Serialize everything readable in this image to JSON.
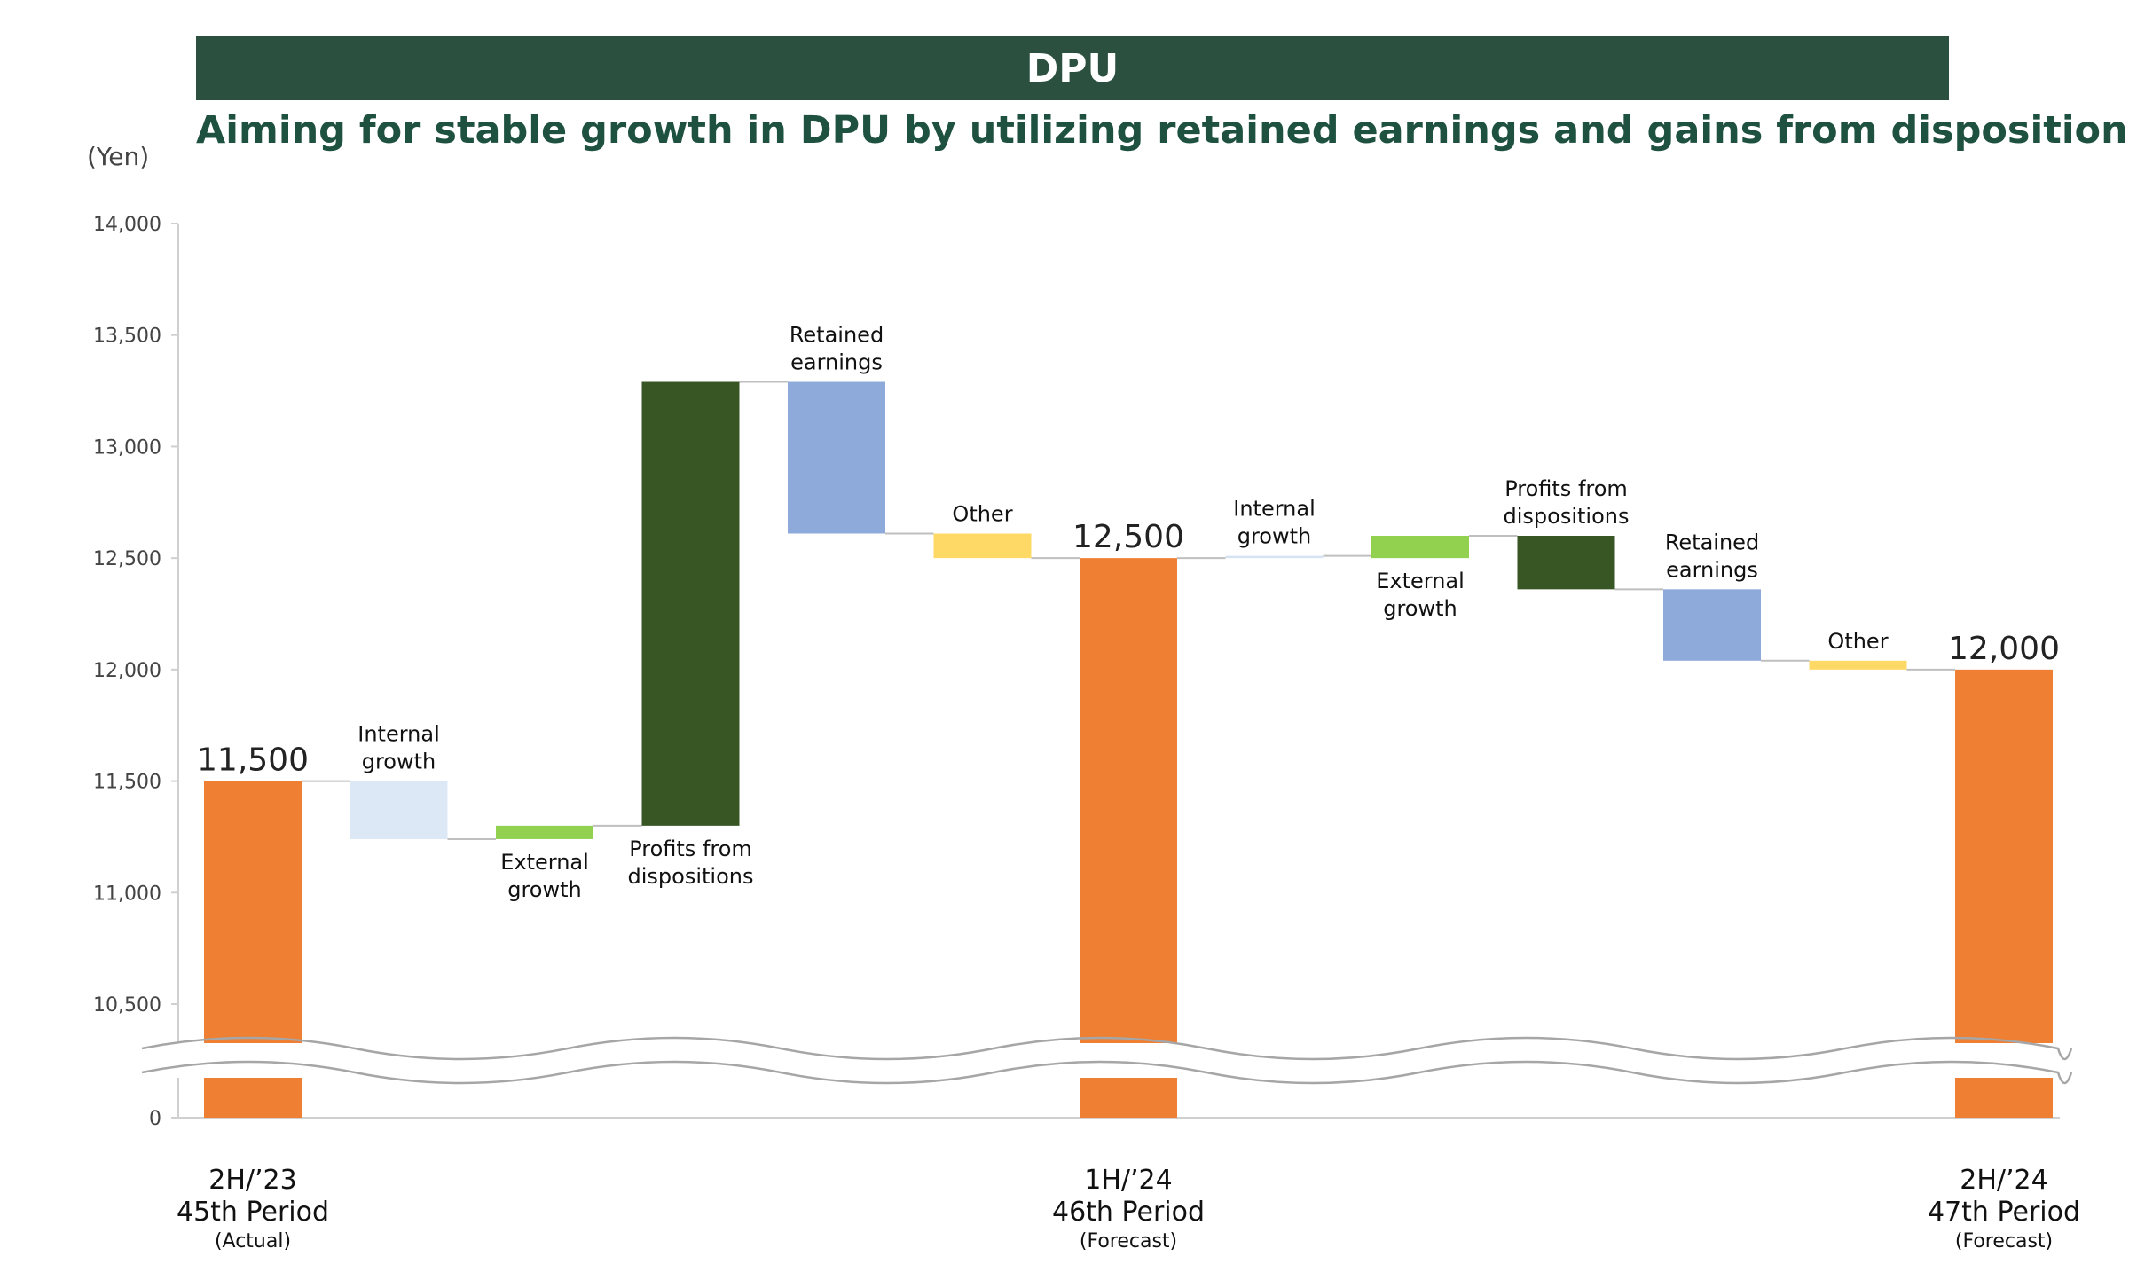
{
  "header": {
    "banner_title": "DPU",
    "headline": "Aiming for stable growth in DPU by utilizing retained earnings and gains from dispositions"
  },
  "chart_data": {
    "type": "bar",
    "subtype": "waterfall",
    "y_unit_label": "(Yen)",
    "ylim": [
      0,
      14000
    ],
    "axis_break": true,
    "yticks": [
      "14,000",
      "13,500",
      "13,000",
      "12,500",
      "12,000",
      "11,500",
      "11,000",
      "10,500",
      "0"
    ],
    "ytick_values": [
      14000,
      13500,
      13000,
      12500,
      12000,
      11500,
      11000,
      10500,
      0
    ],
    "colors": {
      "total": "#ee7f33",
      "internal_growth_1": "#dce8f5",
      "internal_growth_2": "#d6e3f2",
      "external_growth": "#92d050",
      "profits_from_dispositions": "#375623",
      "retained_earnings": "#8eaadb",
      "other": "#ffd966",
      "connector": "#bfbfbf",
      "axis": "#d0d0d0",
      "break": "#a6a6a6"
    },
    "bars": [
      {
        "kind": "total",
        "label": "11,500",
        "start": 0,
        "end": 11500,
        "color_key": "total",
        "category": {
          "line1": "2H/’23",
          "line2": "45th Period",
          "line3": "(Actual)"
        }
      },
      {
        "kind": "step",
        "label": [
          "Internal",
          "growth"
        ],
        "label_pos": "above",
        "start": 11500,
        "end": 11240,
        "color_key": "internal_growth_1"
      },
      {
        "kind": "step",
        "label": [
          "External",
          "growth"
        ],
        "label_pos": "below",
        "start": 11240,
        "end": 11300,
        "color_key": "external_growth"
      },
      {
        "kind": "step",
        "label": [
          "Profits from",
          "dispositions"
        ],
        "label_pos": "below",
        "start": 11300,
        "end": 13290,
        "color_key": "profits_from_dispositions"
      },
      {
        "kind": "step",
        "label": [
          "Retained",
          "earnings"
        ],
        "label_pos": "above",
        "start": 13290,
        "end": 12610,
        "color_key": "retained_earnings"
      },
      {
        "kind": "step",
        "label": [
          "Other"
        ],
        "label_pos": "above",
        "start": 12610,
        "end": 12500,
        "color_key": "other"
      },
      {
        "kind": "total",
        "label": "12,500",
        "start": 0,
        "end": 12500,
        "color_key": "total",
        "category": {
          "line1": "1H/’24",
          "line2": "46th Period",
          "line3": "(Forecast)"
        }
      },
      {
        "kind": "step",
        "label": [
          "Internal",
          "growth"
        ],
        "label_pos": "above",
        "start": 12500,
        "end": 12510,
        "color_key": "internal_growth_2"
      },
      {
        "kind": "step",
        "label": [
          "External",
          "growth"
        ],
        "label_pos": "below",
        "start": 12500,
        "end": 12600,
        "color_key": "external_growth"
      },
      {
        "kind": "step",
        "label": [
          "Profits from",
          "dispositions"
        ],
        "label_pos": "above",
        "start": 12600,
        "end": 12360,
        "color_key": "profits_from_dispositions"
      },
      {
        "kind": "step",
        "label": [
          "Retained",
          "earnings"
        ],
        "label_pos": "above",
        "start": 12360,
        "end": 12040,
        "color_key": "retained_earnings"
      },
      {
        "kind": "step",
        "label": [
          "Other"
        ],
        "label_pos": "above",
        "start": 12040,
        "end": 12000,
        "color_key": "other"
      },
      {
        "kind": "total",
        "label": "12,000",
        "start": 0,
        "end": 12000,
        "color_key": "total",
        "category": {
          "line1": "2H/’24",
          "line2": "47th Period",
          "line3": "(Forecast)"
        }
      }
    ]
  }
}
